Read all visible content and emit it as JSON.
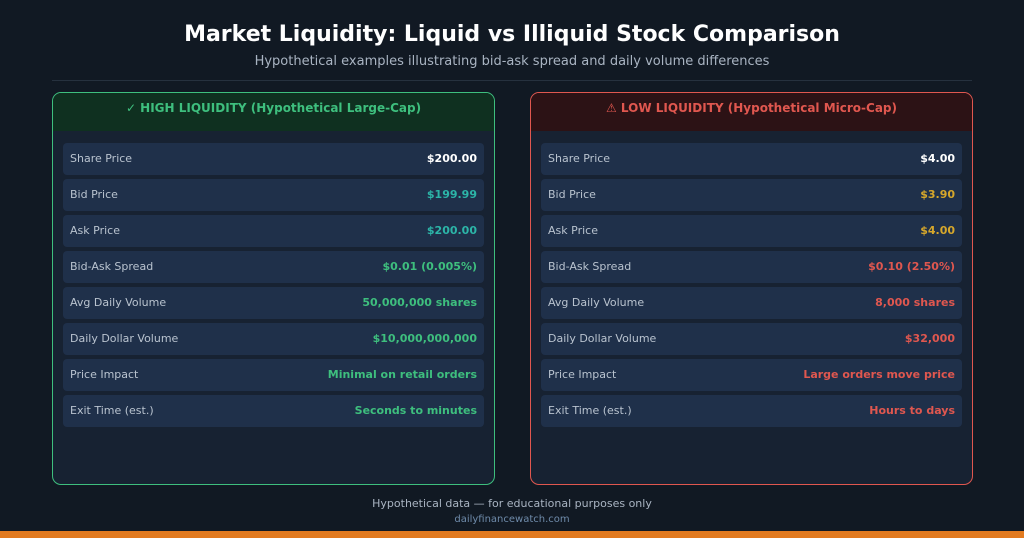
{
  "header": {
    "title": "Market Liquidity: Liquid vs Illiquid Stock Comparison",
    "subtitle": "Hypothetical examples illustrating bid-ask spread and daily volume differences"
  },
  "panels": [
    {
      "heading": "✓  HIGH LIQUIDITY (Hypothetical Large-Cap)",
      "rows": [
        {
          "label": "Share Price",
          "value": "$200.00"
        },
        {
          "label": "Bid Price",
          "value": "$199.99"
        },
        {
          "label": "Ask Price",
          "value": "$200.00"
        },
        {
          "label": "Bid-Ask Spread",
          "value": "$0.01  (0.005%)"
        },
        {
          "label": "Avg Daily Volume",
          "value": "50,000,000 shares"
        },
        {
          "label": "Daily Dollar Volume",
          "value": "$10,000,000,000"
        },
        {
          "label": "Price Impact",
          "value": "Minimal on retail orders"
        },
        {
          "label": "Exit Time (est.)",
          "value": "Seconds to minutes"
        }
      ]
    },
    {
      "heading": "⚠  LOW LIQUIDITY (Hypothetical Micro-Cap)",
      "rows": [
        {
          "label": "Share Price",
          "value": "$4.00"
        },
        {
          "label": "Bid Price",
          "value": "$3.90"
        },
        {
          "label": "Ask Price",
          "value": "$4.00"
        },
        {
          "label": "Bid-Ask Spread",
          "value": "$0.10  (2.50%)"
        },
        {
          "label": "Avg Daily Volume",
          "value": "8,000 shares"
        },
        {
          "label": "Daily Dollar Volume",
          "value": "$32,000"
        },
        {
          "label": "Price Impact",
          "value": "Large orders move price"
        },
        {
          "label": "Exit Time (est.)",
          "value": "Hours to days"
        }
      ]
    }
  ],
  "footer": {
    "note": "Hypothetical data — for educational purposes only",
    "source": "dailyfinancewatch.com"
  }
}
